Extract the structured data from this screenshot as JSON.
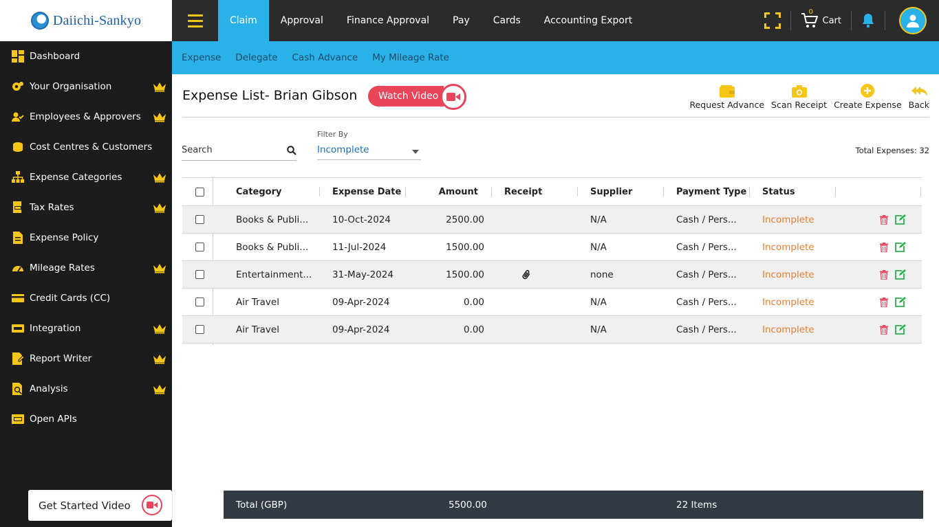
{
  "logo": {
    "text": "Daiichi-Sankyo"
  },
  "topnav": {
    "items": [
      "Claim",
      "Approval",
      "Finance Approval",
      "Pay",
      "Cards",
      "Accounting Export"
    ],
    "active_index": 0
  },
  "topright": {
    "cart_label": "Cart",
    "cart_count": "0"
  },
  "subnav": {
    "items": [
      "Expense",
      "Delegate",
      "Cash Advance",
      "My Mileage Rate"
    ]
  },
  "sidebar": {
    "items": [
      {
        "label": "Dashboard",
        "icon": "dashboard-icon",
        "premium": false
      },
      {
        "label": "Your Organisation",
        "icon": "organisation-icon",
        "premium": true
      },
      {
        "label": "Employees & Approvers",
        "icon": "employees-icon",
        "premium": true
      },
      {
        "label": "Cost Centres & Customers",
        "icon": "cost-centres-icon",
        "premium": false
      },
      {
        "label": "Expense Categories",
        "icon": "categories-icon",
        "premium": true
      },
      {
        "label": "Tax Rates",
        "icon": "tax-icon",
        "premium": true
      },
      {
        "label": "Expense Policy",
        "icon": "policy-icon",
        "premium": false
      },
      {
        "label": "Mileage Rates",
        "icon": "mileage-icon",
        "premium": true
      },
      {
        "label": "Credit Cards (CC)",
        "icon": "credit-card-icon",
        "premium": false
      },
      {
        "label": "Integration",
        "icon": "integration-icon",
        "premium": true
      },
      {
        "label": "Report Writer",
        "icon": "report-icon",
        "premium": true
      },
      {
        "label": "Analysis",
        "icon": "analysis-icon",
        "premium": true
      },
      {
        "label": "Open APIs",
        "icon": "api-icon",
        "premium": false
      }
    ],
    "get_started": "Get Started Video"
  },
  "page": {
    "title": "Expense List- Brian Gibson",
    "watch_video": "Watch Video",
    "actions": [
      "Request Advance",
      "Scan Receipt",
      "Create Expense",
      "Back"
    ],
    "search_label": "Search",
    "filter_label": "Filter By",
    "filter_value": "Incomplete",
    "total_expenses": "Total Expenses: 32"
  },
  "table": {
    "headers": [
      "Category",
      "Expense Date",
      "Amount",
      "Receipt",
      "Supplier",
      "Payment Type",
      "Status"
    ],
    "rows": [
      {
        "category": "Books & Publi...",
        "date": "10-Oct-2024",
        "amount": "2500.00",
        "receipt": false,
        "supplier": "N/A",
        "payment": "Cash / Pers...",
        "status": "Incomplete"
      },
      {
        "category": "Books & Publi...",
        "date": "11-Jul-2024",
        "amount": "1500.00",
        "receipt": false,
        "supplier": "N/A",
        "payment": "Cash / Pers...",
        "status": "Incomplete"
      },
      {
        "category": "Entertainment...",
        "date": "31-May-2024",
        "amount": "1500.00",
        "receipt": true,
        "supplier": "none",
        "payment": "Cash / Pers...",
        "status": "Incomplete"
      },
      {
        "category": "Air Travel",
        "date": "09-Apr-2024",
        "amount": "0.00",
        "receipt": false,
        "supplier": "N/A",
        "payment": "Cash / Pers...",
        "status": "Incomplete"
      },
      {
        "category": "Air Travel",
        "date": "09-Apr-2024",
        "amount": "0.00",
        "receipt": false,
        "supplier": "N/A",
        "payment": "Cash / Pers...",
        "status": "Incomplete"
      }
    ]
  },
  "footer": {
    "label": "Total (GBP)",
    "amount": "5500.00",
    "items": "22 Items"
  },
  "colors": {
    "accent": "#29b1e8",
    "yellow": "#f5c518",
    "dark": "#2b2b2b",
    "sidebar": "#1c1c1c",
    "status": "#f07b2c",
    "red": "#e8445a",
    "green": "#2bb24c"
  }
}
